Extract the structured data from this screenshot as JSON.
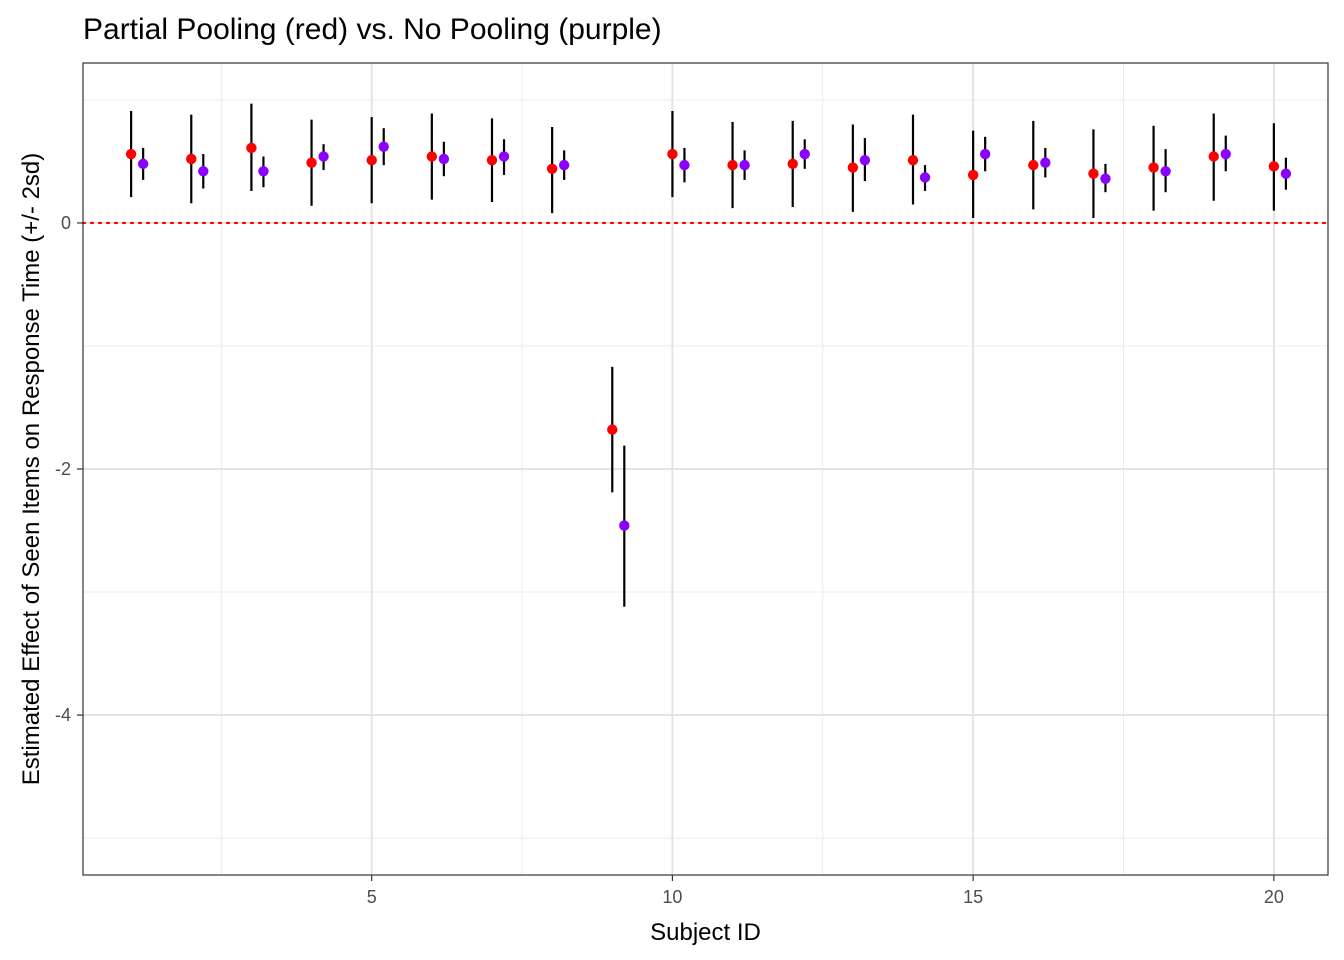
{
  "chart_data": {
    "type": "scatter",
    "title": "Partial Pooling (red) vs. No Pooling (purple)",
    "xlabel": "Subject ID",
    "ylabel": "Estimated Effect of Seen Items on Response Time (+/- 2sd)",
    "xlim": [
      0.2,
      20.9
    ],
    "ylim": [
      -5.3,
      1.3
    ],
    "x_ticks": [
      5,
      10,
      15,
      20
    ],
    "x_tick_labels": [
      "5",
      "10",
      "15",
      "20"
    ],
    "y_ticks": [
      -4,
      -2,
      0
    ],
    "y_tick_labels": [
      "-4",
      "-2",
      "0"
    ],
    "x_minor_ticks": [
      2.5,
      7.5,
      12.5,
      17.5
    ],
    "y_minor_ticks": [
      -5,
      -3,
      -1,
      1
    ],
    "grid": true,
    "legend": "none",
    "reference_line": {
      "y": 0,
      "style": "dotted",
      "color": "#ff0000"
    },
    "series": [
      {
        "color": "#ff0000",
        "x_offset": 0,
        "points": [
          {
            "x": 1,
            "y": 0.56,
            "lo": 0.21,
            "hi": 0.91
          },
          {
            "x": 2,
            "y": 0.52,
            "lo": 0.16,
            "hi": 0.88
          },
          {
            "x": 3,
            "y": 0.61,
            "lo": 0.26,
            "hi": 0.97
          },
          {
            "x": 4,
            "y": 0.49,
            "lo": 0.14,
            "hi": 0.84
          },
          {
            "x": 5,
            "y": 0.51,
            "lo": 0.16,
            "hi": 0.86
          },
          {
            "x": 6,
            "y": 0.54,
            "lo": 0.19,
            "hi": 0.89
          },
          {
            "x": 7,
            "y": 0.51,
            "lo": 0.17,
            "hi": 0.85
          },
          {
            "x": 8,
            "y": 0.44,
            "lo": 0.08,
            "hi": 0.78
          },
          {
            "x": 9,
            "y": -1.68,
            "lo": -2.19,
            "hi": -1.17
          },
          {
            "x": 10,
            "y": 0.56,
            "lo": 0.21,
            "hi": 0.91
          },
          {
            "x": 11,
            "y": 0.47,
            "lo": 0.12,
            "hi": 0.82
          },
          {
            "x": 12,
            "y": 0.48,
            "lo": 0.13,
            "hi": 0.83
          },
          {
            "x": 13,
            "y": 0.45,
            "lo": 0.09,
            "hi": 0.8
          },
          {
            "x": 14,
            "y": 0.51,
            "lo": 0.15,
            "hi": 0.88
          },
          {
            "x": 15,
            "y": 0.39,
            "lo": 0.04,
            "hi": 0.75
          },
          {
            "x": 16,
            "y": 0.47,
            "lo": 0.11,
            "hi": 0.83
          },
          {
            "x": 17,
            "y": 0.4,
            "lo": 0.04,
            "hi": 0.76
          },
          {
            "x": 18,
            "y": 0.45,
            "lo": 0.1,
            "hi": 0.79
          },
          {
            "x": 19,
            "y": 0.54,
            "lo": 0.18,
            "hi": 0.89
          },
          {
            "x": 20,
            "y": 0.46,
            "lo": 0.1,
            "hi": 0.81
          }
        ]
      },
      {
        "color": "#8b00ff",
        "x_offset": 0.2,
        "points": [
          {
            "x": 1,
            "y": 0.48,
            "lo": 0.35,
            "hi": 0.61
          },
          {
            "x": 2,
            "y": 0.42,
            "lo": 0.28,
            "hi": 0.56
          },
          {
            "x": 3,
            "y": 0.42,
            "lo": 0.29,
            "hi": 0.54
          },
          {
            "x": 4,
            "y": 0.54,
            "lo": 0.43,
            "hi": 0.64
          },
          {
            "x": 5,
            "y": 0.62,
            "lo": 0.47,
            "hi": 0.77
          },
          {
            "x": 6,
            "y": 0.52,
            "lo": 0.38,
            "hi": 0.66
          },
          {
            "x": 7,
            "y": 0.54,
            "lo": 0.39,
            "hi": 0.68
          },
          {
            "x": 8,
            "y": 0.47,
            "lo": 0.35,
            "hi": 0.59
          },
          {
            "x": 9,
            "y": -2.46,
            "lo": -3.12,
            "hi": -1.81
          },
          {
            "x": 10,
            "y": 0.47,
            "lo": 0.33,
            "hi": 0.61
          },
          {
            "x": 11,
            "y": 0.47,
            "lo": 0.35,
            "hi": 0.59
          },
          {
            "x": 12,
            "y": 0.56,
            "lo": 0.44,
            "hi": 0.68
          },
          {
            "x": 13,
            "y": 0.51,
            "lo": 0.34,
            "hi": 0.69
          },
          {
            "x": 14,
            "y": 0.37,
            "lo": 0.26,
            "hi": 0.47
          },
          {
            "x": 15,
            "y": 0.56,
            "lo": 0.42,
            "hi": 0.7
          },
          {
            "x": 16,
            "y": 0.49,
            "lo": 0.37,
            "hi": 0.61
          },
          {
            "x": 17,
            "y": 0.36,
            "lo": 0.25,
            "hi": 0.48
          },
          {
            "x": 18,
            "y": 0.42,
            "lo": 0.25,
            "hi": 0.6
          },
          {
            "x": 19,
            "y": 0.56,
            "lo": 0.42,
            "hi": 0.71
          },
          {
            "x": 20,
            "y": 0.4,
            "lo": 0.27,
            "hi": 0.53
          }
        ]
      }
    ]
  }
}
